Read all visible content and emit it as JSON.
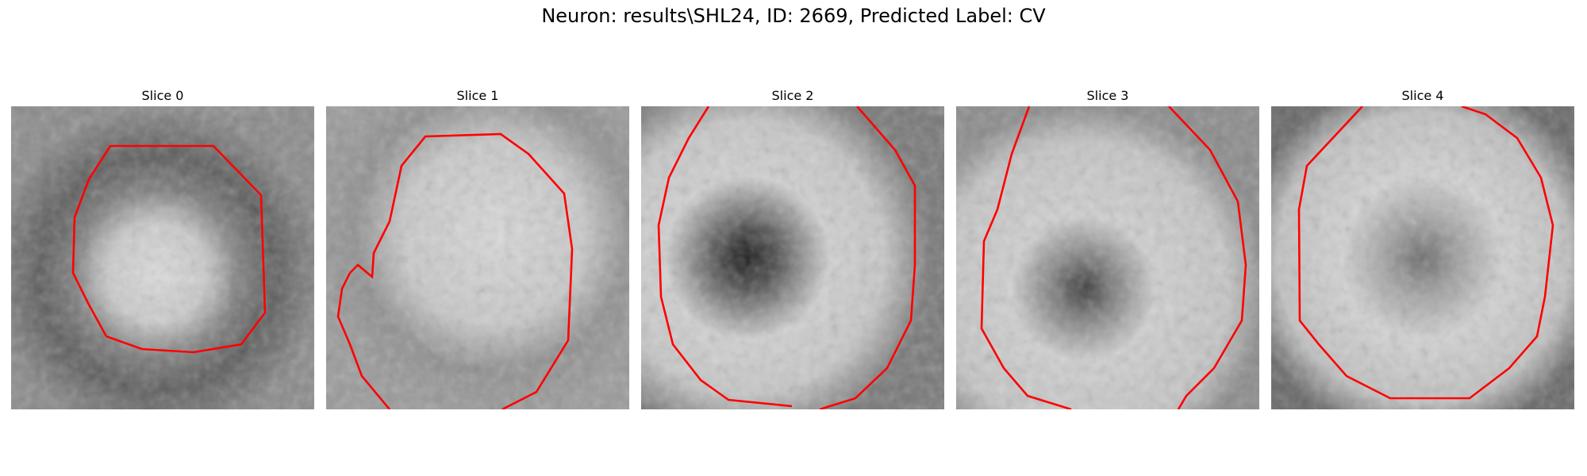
{
  "figure": {
    "title": "Neuron: results\\SHL24, ID: 2669, Predicted Label: CV"
  },
  "colors": {
    "contour": "#ff0000",
    "background": "#ffffff"
  },
  "panels": [
    {
      "title": "Slice 0"
    },
    {
      "title": "Slice 1"
    },
    {
      "title": "Slice 2"
    },
    {
      "title": "Slice 3"
    },
    {
      "title": "Slice 4"
    }
  ]
}
